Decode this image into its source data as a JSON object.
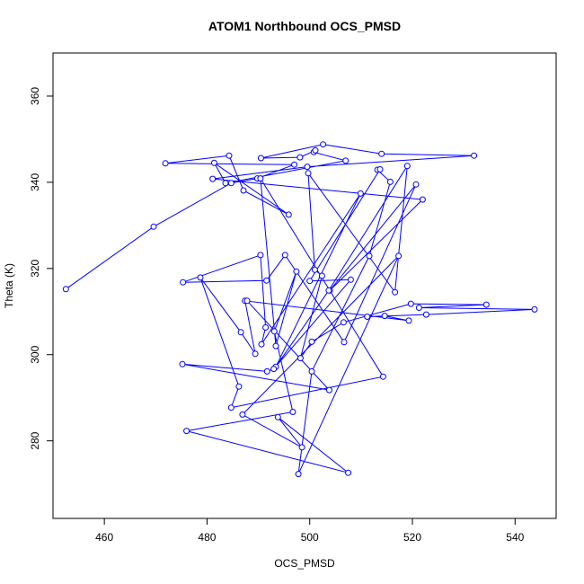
{
  "chart_data": {
    "type": "line",
    "title": "ATOM1 Northbound OCS_PMSD",
    "xlabel": "OCS_PMSD",
    "ylabel": "Theta (K)",
    "xlim": [
      450,
      548
    ],
    "ylim": [
      262,
      370
    ],
    "xticks": [
      460,
      480,
      500,
      520,
      540
    ],
    "yticks": [
      280,
      300,
      320,
      340,
      360
    ],
    "grid": false,
    "series_color": "#0000ff",
    "markers": "open-circle",
    "points": [
      [
        452.5,
        315.2
      ],
      [
        469.6,
        329.7
      ],
      [
        484.7,
        339.8
      ],
      [
        489.8,
        340.9
      ],
      [
        497.0,
        344.1
      ],
      [
        471.9,
        344.4
      ],
      [
        484.3,
        346.2
      ],
      [
        487.1,
        338.1
      ],
      [
        495.9,
        332.5
      ],
      [
        481.4,
        344.5
      ],
      [
        483.6,
        339.8
      ],
      [
        507.0,
        345.0
      ],
      [
        500.8,
        347.0
      ],
      [
        501.1,
        347.4
      ],
      [
        498.1,
        345.8
      ],
      [
        490.5,
        345.6
      ],
      [
        502.6,
        348.8
      ],
      [
        514.0,
        346.6
      ],
      [
        532.0,
        346.2
      ],
      [
        499.5,
        343.6
      ],
      [
        481.1,
        340.8
      ],
      [
        522.0,
        336.0
      ],
      [
        503.9,
        314.9
      ],
      [
        520.7,
        339.5
      ],
      [
        506.7,
        302.9
      ],
      [
        495.2,
        323.1
      ],
      [
        491.6,
        317.2
      ],
      [
        475.3,
        316.8
      ],
      [
        490.4,
        323.1
      ],
      [
        491.4,
        306.3
      ],
      [
        490.6,
        302.4
      ],
      [
        509.9,
        337.4
      ],
      [
        493.4,
        297.2
      ],
      [
        503.7,
        314.9
      ],
      [
        519.0,
        343.8
      ],
      [
        516.6,
        314.5
      ],
      [
        499.7,
        342.1
      ],
      [
        501.0,
        319.7
      ],
      [
        502.4,
        318.3
      ],
      [
        498.2,
        299.2
      ],
      [
        500.4,
        303.0
      ],
      [
        506.6,
        307.5
      ],
      [
        519.7,
        311.8
      ],
      [
        534.4,
        311.6
      ],
      [
        521.3,
        310.9
      ],
      [
        543.8,
        310.5
      ],
      [
        522.7,
        309.3
      ],
      [
        511.2,
        308.8
      ],
      [
        514.6,
        309.0
      ],
      [
        519.3,
        307.9
      ],
      [
        487.4,
        312.5
      ],
      [
        489.4,
        300.2
      ],
      [
        486.6,
        305.2
      ],
      [
        478.7,
        317.9
      ],
      [
        486.2,
        292.6
      ],
      [
        484.7,
        287.7
      ],
      [
        514.3,
        294.9
      ],
      [
        490.4,
        340.9
      ],
      [
        493.4,
        302.0
      ],
      [
        497.4,
        319.3
      ],
      [
        493.1,
        305.4
      ],
      [
        496.7,
        286.7
      ],
      [
        476.0,
        282.3
      ],
      [
        507.5,
        272.6
      ],
      [
        493.8,
        285.5
      ],
      [
        498.5,
        278.5
      ],
      [
        486.9,
        286.1
      ],
      [
        517.3,
        322.9
      ],
      [
        497.8,
        272.3
      ],
      [
        500.4,
        296.1
      ],
      [
        511.6,
        322.9
      ],
      [
        515.7,
        340.1
      ],
      [
        513.2,
        342.9
      ],
      [
        513.7,
        343.0
      ],
      [
        500.0,
        317.1
      ],
      [
        508.0,
        317.4
      ],
      [
        493.0,
        296.7
      ],
      [
        491.7,
        296.1
      ],
      [
        475.2,
        297.8
      ],
      [
        503.8,
        291.8
      ],
      [
        487.8,
        312.5
      ]
    ]
  }
}
